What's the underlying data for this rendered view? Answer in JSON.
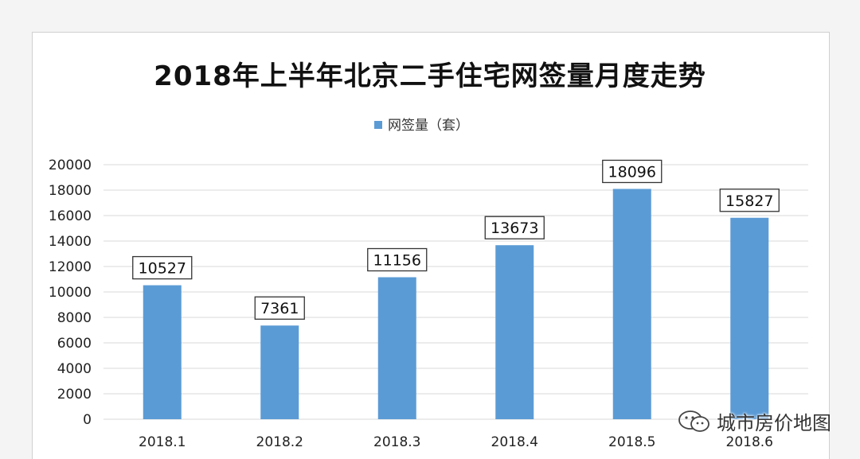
{
  "chart_data": {
    "type": "bar",
    "title": "2018年上半年北京二手住宅网签量月度走势",
    "categories": [
      "2018.1",
      "2018.2",
      "2018.3",
      "2018.4",
      "2018.5",
      "2018.6"
    ],
    "series": [
      {
        "name": "网签量（套）",
        "values": [
          10527,
          7361,
          11156,
          13673,
          18096,
          15827
        ],
        "color": "#5b9bd5"
      }
    ],
    "ylim": [
      0,
      20000
    ],
    "yticks": [
      "0",
      "2000",
      "4000",
      "6000",
      "8000",
      "10000",
      "12000",
      "14000",
      "16000",
      "18000",
      "20000"
    ],
    "grid": true,
    "legend_position": "top",
    "gridline_color": "#d9d9d9",
    "data_labels": true
  },
  "watermark": {
    "text": "城市房价地图",
    "icon": "wechat-icon"
  }
}
